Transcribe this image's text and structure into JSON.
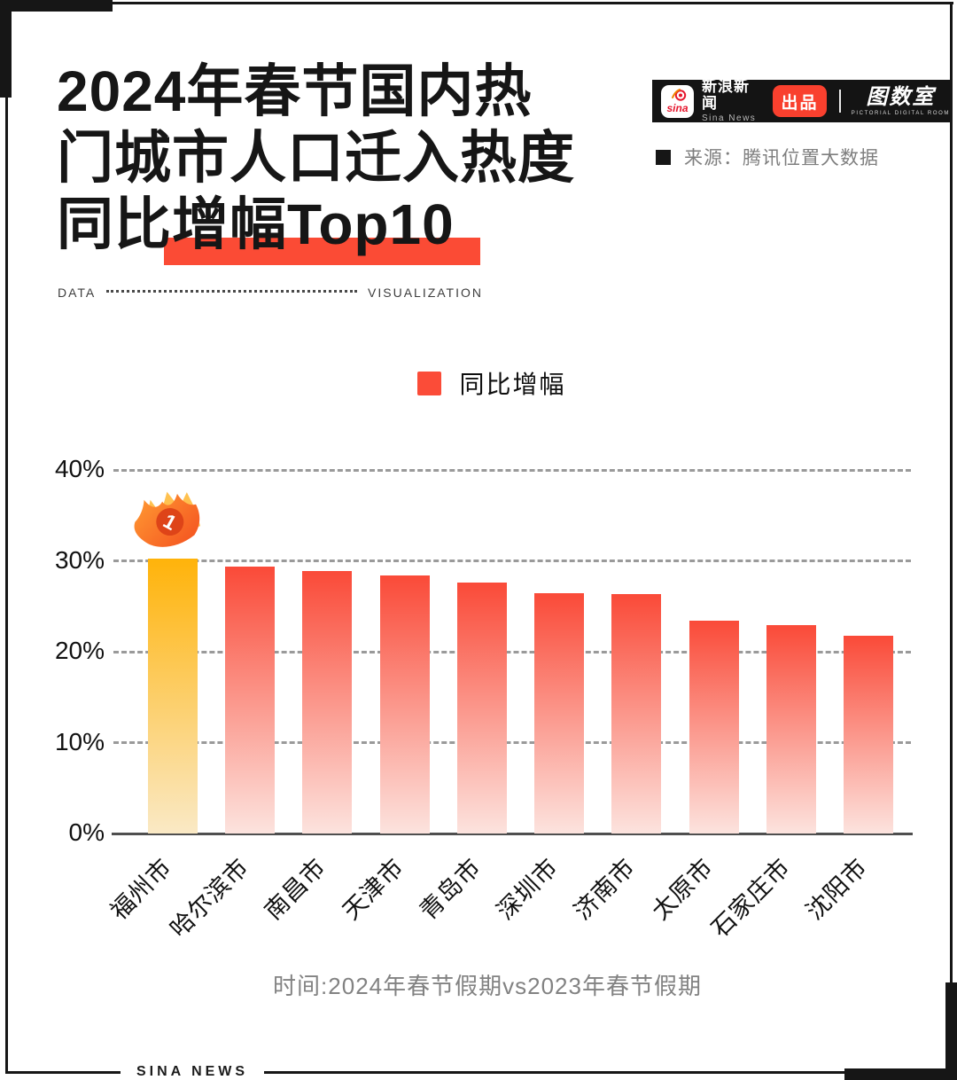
{
  "page": {
    "title_lines": [
      "2024年春节国内热",
      "门城市人口迁入热度",
      "同比增幅Top10"
    ],
    "divider_left": "DATA",
    "divider_right": "VISUALIZATION",
    "footnote": "时间:2024年春节假期vs2023年春节假期",
    "footer_brand": "SINA NEWS"
  },
  "header_banner": {
    "sina_logo_text": "sina",
    "brand_cn": "新浪新闻",
    "brand_en": "Sina News",
    "badge": "出品",
    "studio_logo": "图数室",
    "studio_sub": "PICTORIAL DIGITAL ROOM"
  },
  "source": {
    "label": "来源：腾讯位置大数据"
  },
  "legend": {
    "label": "同比增幅",
    "color": "#FB4C38"
  },
  "rank_badge": {
    "number": "1"
  },
  "colors": {
    "accent_red": "#F9402E",
    "highlight": "#FB4B35",
    "bar_red_top": "#FA4A38",
    "bar_red_bottom": "#FCE3DE",
    "bar_gold_top": "#FFB30A",
    "bar_gold_bottom": "#FAE9C5",
    "banner_bg": "#141414",
    "text_gray": "#7E7E7E"
  },
  "chart_data": {
    "type": "bar",
    "title": "2024年春节国内热门城市人口迁入热度同比增幅Top10",
    "series_name": "同比增幅",
    "categories": [
      "福州市",
      "哈尔滨市",
      "南昌市",
      "天津市",
      "青岛市",
      "深圳市",
      "济南市",
      "太原市",
      "石家庄市",
      "沈阳市"
    ],
    "values": [
      30.2,
      29.4,
      28.9,
      28.4,
      27.6,
      26.4,
      26.3,
      23.4,
      22.9,
      21.8
    ],
    "unit": "%",
    "ylim": [
      0,
      40
    ],
    "yticks": [
      "0%",
      "10%",
      "20%",
      "30%",
      "40%"
    ],
    "grid": "horizontal-dashed",
    "legend_position": "top-center",
    "highlight_first_bar": true,
    "source": "腾讯位置大数据",
    "period": "2024年春节假期vs2023年春节假期"
  }
}
